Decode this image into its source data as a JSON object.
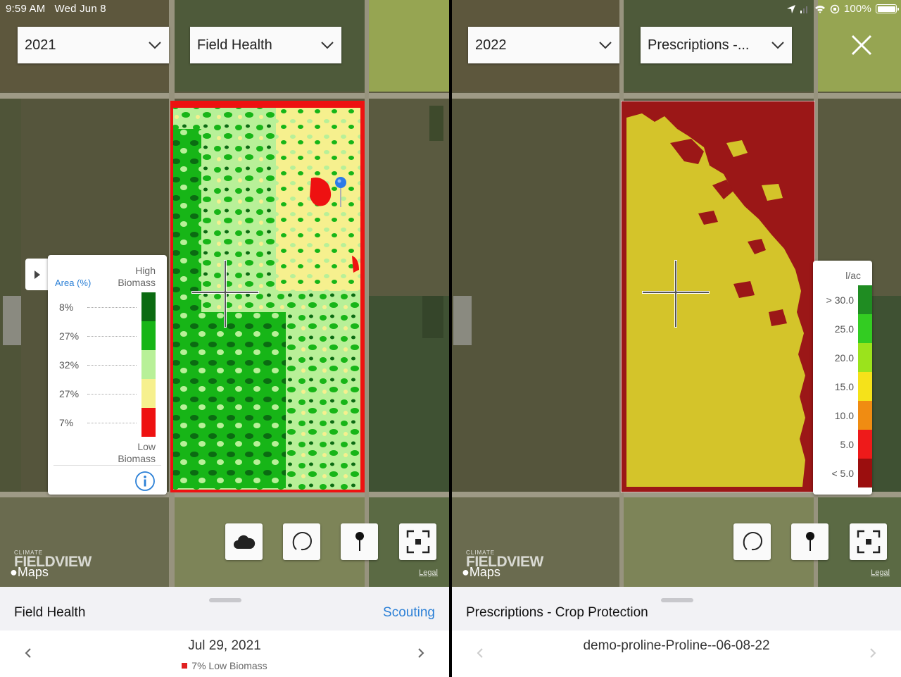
{
  "status_bar": {
    "time": "9:59 AM",
    "date": "Wed Jun 8",
    "battery": "100%"
  },
  "left": {
    "year_select": "2021",
    "layer_select": "Field Health",
    "legend": {
      "header_area": "Area (%)",
      "header_high": [
        "High",
        "Biomass"
      ],
      "footer_low": [
        "Low",
        "Biomass"
      ],
      "rows": [
        {
          "pct": "8%",
          "color": "#0b6b12"
        },
        {
          "pct": "27%",
          "color": "#17b517"
        },
        {
          "pct": "32%",
          "color": "#b8f098"
        },
        {
          "pct": "27%",
          "color": "#f6f08e"
        },
        {
          "pct": "7%",
          "color": "#ee1111"
        }
      ]
    },
    "branding": {
      "climate": "CLIMATE",
      "fieldview": "FIELDVIEW",
      "maps": "Maps"
    },
    "legal": "Legal",
    "sheet": {
      "title": "Field Health",
      "action": "Scouting",
      "date": "Jul 29, 2021",
      "summary": "7% Low Biomass"
    }
  },
  "right": {
    "year_select": "2022",
    "layer_select": "Prescriptions -...",
    "legend": {
      "unit": "l/ac",
      "rows": [
        {
          "value": "> 30.0",
          "color": "#1f8c22"
        },
        {
          "value": "25.0",
          "color": "#33cc22"
        },
        {
          "value": "20.0",
          "color": "#9be31c"
        },
        {
          "value": "15.0",
          "color": "#f5e21a"
        },
        {
          "value": "10.0",
          "color": "#f08c12"
        },
        {
          "value": "5.0",
          "color": "#ee1a1a"
        },
        {
          "value": "< 5.0",
          "color": "#9b0e0e"
        }
      ]
    },
    "branding": {
      "climate": "CLIMATE",
      "fieldview": "FIELDVIEW",
      "maps": "Maps"
    },
    "legal": "Legal",
    "sheet": {
      "title": "Prescriptions - Crop Protection",
      "file": "demo-proline-Proline--06-08-22"
    }
  }
}
